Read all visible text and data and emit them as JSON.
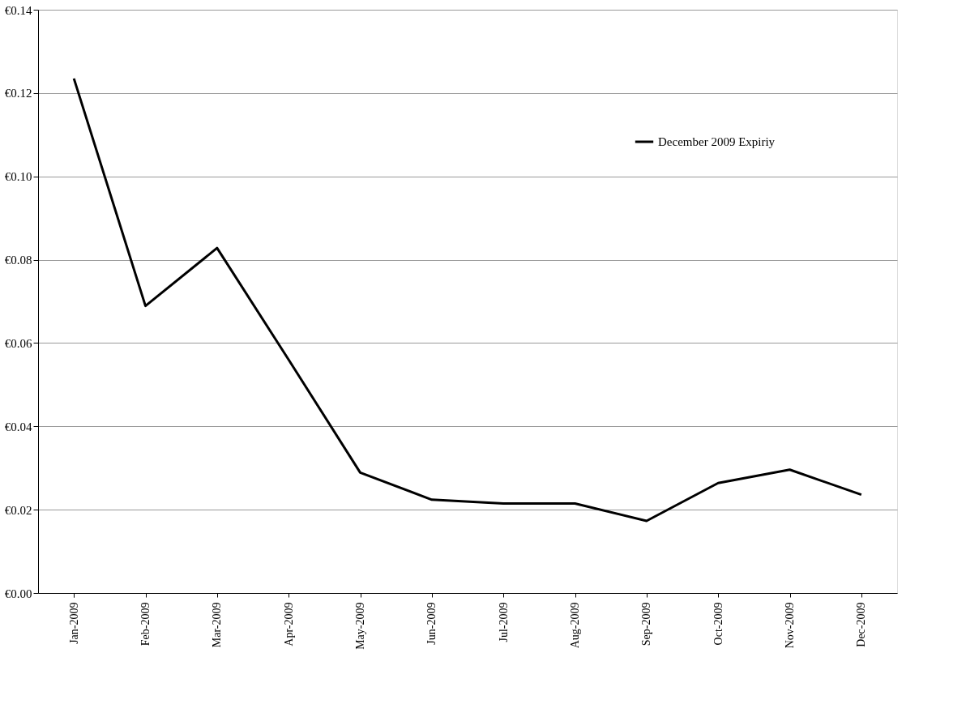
{
  "chart_data": {
    "type": "line",
    "categories": [
      "Jan-2009",
      "Feb-2009",
      "Mar-2009",
      "Apr-2009",
      "May-2009",
      "Jun-2009",
      "Jul-2009",
      "Aug-2009",
      "Sep-2009",
      "Oct-2009",
      "Nov-2009",
      "Dec-2009"
    ],
    "series": [
      {
        "name": "December 2009 Expiriy",
        "color": "#000000",
        "values": [
          0.1235,
          0.0689,
          0.0828,
          0.056,
          0.0289,
          0.0224,
          0.0215,
          0.0215,
          0.0173,
          0.0264,
          0.0296,
          0.0236
        ]
      }
    ],
    "ylim": [
      0,
      0.14
    ],
    "yticks": [
      {
        "value": 0,
        "label": "€0.00"
      },
      {
        "value": 0.02,
        "label": "€0.02"
      },
      {
        "value": 0.04,
        "label": "€0.04"
      },
      {
        "value": 0.06,
        "label": "€0.06"
      },
      {
        "value": 0.08,
        "label": "€0.08"
      },
      {
        "value": 0.1,
        "label": "€0.10"
      },
      {
        "value": 0.12,
        "label": "€0.12"
      },
      {
        "value": 0.14,
        "label": "€0.14"
      }
    ],
    "grid": "y",
    "legend": "top right",
    "marker": "none",
    "line_style": "solid"
  }
}
